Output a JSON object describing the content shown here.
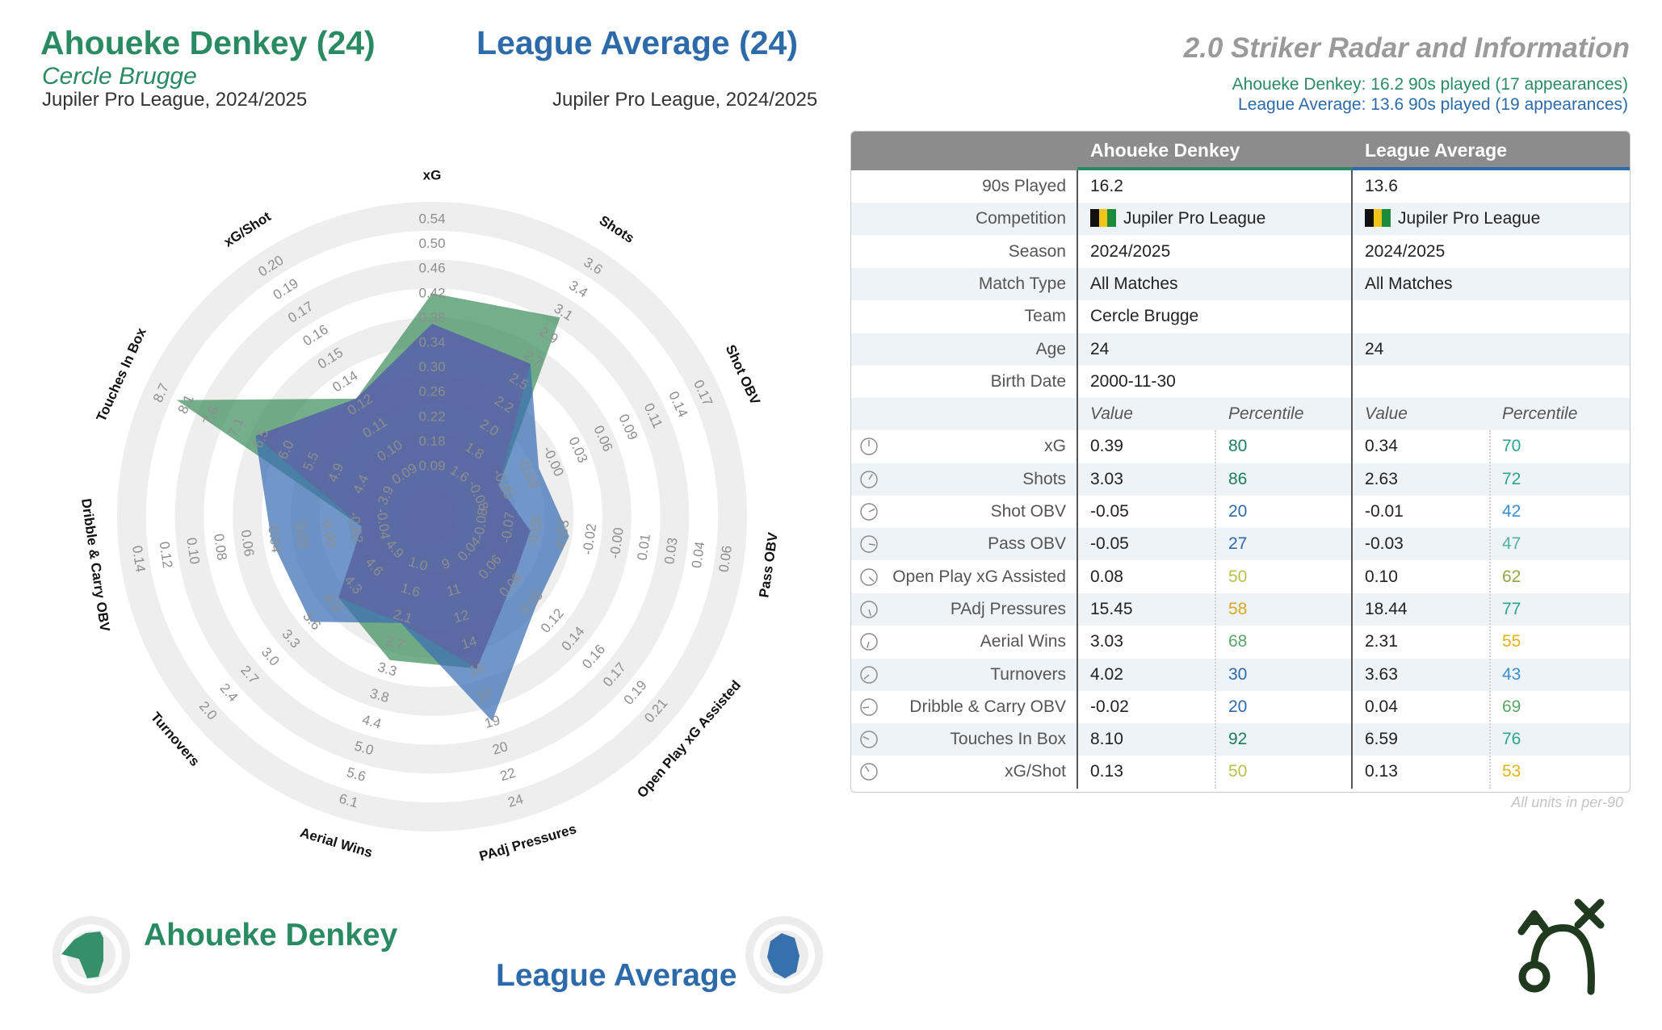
{
  "header": {
    "player_title": "Ahoueke Denkey (24)",
    "team": "Cercle Brugge",
    "player_league": "Jupiler Pro League, 2024/2025",
    "average_title": "League Average (24)",
    "average_league": "Jupiler Pro League, 2024/2025",
    "info_title": "2.0 Striker Radar and Information",
    "player_note": "Ahoueke Denkey: 16.2 90s played (17 appearances)",
    "average_note": "League Average: 13.6 90s played (19 appearances)"
  },
  "colors": {
    "player": "#2a8b62",
    "average": "#2d6aaa",
    "player_fill": "#3f8f5e",
    "average_fill": "#3a6fb3",
    "ring": "#eeeeee"
  },
  "chart_data": {
    "type": "radar",
    "series": [
      {
        "name": "Ahoueke Denkey",
        "values": [
          0.39,
          3.03,
          -0.05,
          -0.05,
          0.08,
          15.45,
          3.03,
          4.02,
          -0.02,
          8.1,
          0.13
        ]
      },
      {
        "name": "League Average",
        "values": [
          0.34,
          2.63,
          -0.01,
          -0.03,
          0.1,
          18.44,
          2.31,
          3.63,
          0.04,
          6.59,
          0.13
        ]
      }
    ],
    "axes": [
      {
        "label": "xG",
        "ticks": [
          "0.09",
          "0.18",
          "0.22",
          "0.26",
          "0.30",
          "0.34",
          "0.38",
          "0.42",
          "0.46",
          "0.50",
          "0.54"
        ],
        "min": 0.09,
        "max": 0.54
      },
      {
        "label": "Shots",
        "ticks": [
          "1.6",
          "1.8",
          "2.0",
          "2.2",
          "2.5",
          "2.7",
          "2.9",
          "3.1",
          "3.4",
          "3.6"
        ],
        "min": 1.6,
        "max": 3.6
      },
      {
        "label": "Shot OBV",
        "ticks": [
          "-0.08",
          "-0.05",
          "-0.03",
          "-0.00",
          "0.03",
          "0.06",
          "0.09",
          "0.11",
          "0.14",
          "0.17"
        ],
        "min": -0.08,
        "max": 0.17
      },
      {
        "label": "Pass OBV",
        "ticks": [
          "-0.08",
          "-0.07",
          "-0.05",
          "-0.03",
          "-0.02",
          "-0.00",
          "0.01",
          "0.03",
          "0.04",
          "0.06"
        ],
        "min": -0.08,
        "max": 0.06
      },
      {
        "label": "Open Play xG Assisted",
        "ticks": [
          "0.04",
          "0.06",
          "0.08",
          "0.10",
          "0.12",
          "0.14",
          "0.16",
          "0.17",
          "0.19",
          "0.21"
        ],
        "min": 0.04,
        "max": 0.21
      },
      {
        "label": "PAdj Pressures",
        "ticks": [
          "9",
          "11",
          "12",
          "14",
          "16",
          "17",
          "19",
          "20",
          "22",
          "24"
        ],
        "min": 9,
        "max": 24
      },
      {
        "label": "Aerial Wins",
        "ticks": [
          "1.0",
          "1.6",
          "2.1",
          "2.7",
          "3.3",
          "3.8",
          "4.4",
          "5.0",
          "5.6",
          "6.1"
        ],
        "min": 1.0,
        "max": 6.1
      },
      {
        "label": "Turnovers",
        "ticks": [
          "4.9",
          "4.6",
          "4.3",
          "4.0",
          "3.6",
          "3.3",
          "3.0",
          "2.7",
          "2.4",
          "2.0"
        ],
        "min": 4.9,
        "max": 2.0
      },
      {
        "label": "Dribble & Carry OBV",
        "ticks": [
          "-0.04",
          "-0.02",
          "-0.00",
          "0.02",
          "0.04",
          "0.06",
          "0.08",
          "0.10",
          "0.12",
          "0.14"
        ],
        "min": -0.04,
        "max": 0.14
      },
      {
        "label": "Touches In Box",
        "ticks": [
          "3.9",
          "4.4",
          "4.9",
          "5.5",
          "6.0",
          "6.5",
          "7.1",
          "7.6",
          "8.1",
          "8.7"
        ],
        "min": 3.9,
        "max": 8.7
      },
      {
        "label": "xG/Shot",
        "ticks": [
          "0.09",
          "0.10",
          "0.11",
          "0.12",
          "0.14",
          "0.15",
          "0.16",
          "0.17",
          "0.19",
          "0.20"
        ],
        "min": 0.09,
        "max": 0.2
      }
    ]
  },
  "table": {
    "col_player": "Ahoueke Denkey",
    "col_average": "League Average",
    "info_rows": [
      {
        "label": "90s Played",
        "player": "16.2",
        "average": "13.6"
      },
      {
        "label": "Competition",
        "player": "Jupiler Pro League",
        "average": "Jupiler Pro League",
        "flag": true
      },
      {
        "label": "Season",
        "player": "2024/2025",
        "average": "2024/2025"
      },
      {
        "label": "Match Type",
        "player": "All Matches",
        "average": "All Matches"
      },
      {
        "label": "Team",
        "player": "Cercle Brugge",
        "average": ""
      },
      {
        "label": "Age",
        "player": "24",
        "average": "24"
      },
      {
        "label": "Birth Date",
        "player": "2000-11-30",
        "average": ""
      }
    ],
    "sub_header": {
      "value": "Value",
      "percentile": "Percentile"
    },
    "metric_rows": [
      {
        "label": "xG",
        "pv": "0.39",
        "pp": "80",
        "ppc": "#1e7d5a",
        "av": "0.34",
        "ap": "70",
        "apc": "#2aa58a"
      },
      {
        "label": "Shots",
        "pv": "3.03",
        "pp": "86",
        "ppc": "#1e7d5a",
        "av": "2.63",
        "ap": "72",
        "apc": "#2aa58a"
      },
      {
        "label": "Shot OBV",
        "pv": "-0.05",
        "pp": "20",
        "ppc": "#2d6aaa",
        "av": "-0.01",
        "ap": "42",
        "apc": "#3b8fd0"
      },
      {
        "label": "Pass OBV",
        "pv": "-0.05",
        "pp": "27",
        "ppc": "#2d6aaa",
        "av": "-0.03",
        "ap": "47",
        "apc": "#52b3a0"
      },
      {
        "label": "Open Play xG Assisted",
        "pv": "0.08",
        "pp": "50",
        "ppc": "#b7c24a",
        "av": "0.10",
        "ap": "62",
        "apc": "#8fa845"
      },
      {
        "label": "PAdj Pressures",
        "pv": "15.45",
        "pp": "58",
        "ppc": "#d7a71e",
        "av": "18.44",
        "ap": "77",
        "apc": "#2aa58a"
      },
      {
        "label": "Aerial Wins",
        "pv": "3.03",
        "pp": "68",
        "ppc": "#5aa56a",
        "av": "2.31",
        "ap": "55",
        "apc": "#e0b412"
      },
      {
        "label": "Turnovers",
        "pv": "4.02",
        "pp": "30",
        "ppc": "#2d6aaa",
        "av": "3.63",
        "ap": "43",
        "apc": "#3b8fd0"
      },
      {
        "label": "Dribble & Carry OBV",
        "pv": "-0.02",
        "pp": "20",
        "ppc": "#2d6aaa",
        "av": "0.04",
        "ap": "69",
        "apc": "#5aa56a"
      },
      {
        "label": "Touches In Box",
        "pv": "8.10",
        "pp": "92",
        "ppc": "#1e7d5a",
        "av": "6.59",
        "ap": "76",
        "apc": "#2aa58a"
      },
      {
        "label": "xG/Shot",
        "pv": "0.13",
        "pp": "50",
        "ppc": "#b7c24a",
        "av": "0.13",
        "ap": "53",
        "apc": "#e0b412"
      }
    ],
    "units_note": "All units in per-90"
  },
  "legend": {
    "player_name": "Ahoueke Denkey",
    "average_name": "League Average"
  },
  "icons": {
    "brand_logo": "tactics-arrow-cross-icon",
    "metric_icon": "clock-icon"
  }
}
